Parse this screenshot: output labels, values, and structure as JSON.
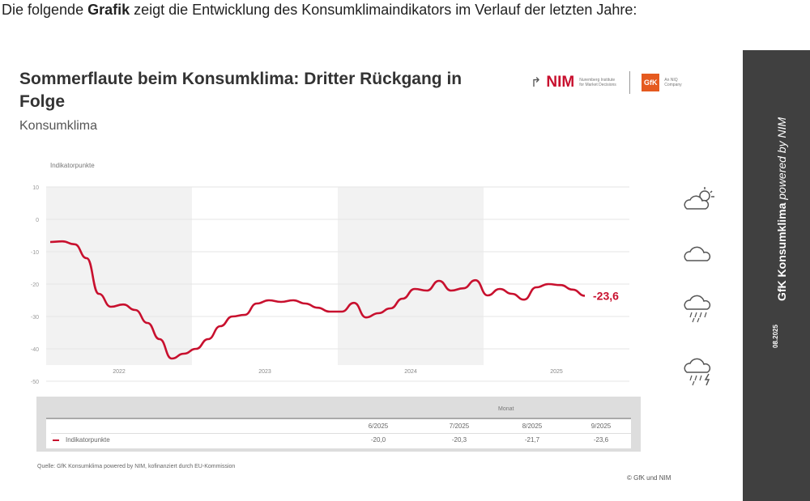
{
  "intro": {
    "pre": "Die folgende ",
    "bold": "Grafik",
    "post": " zeigt die Entwicklung des Konsumklimaindikators im Verlauf der letzten Jahre:"
  },
  "logos": {
    "nim": "NIM",
    "nim_sub": "Nuremberg Institute for Market Decisions",
    "gfk": "GfK",
    "gfk_sub": "An NIQ Company"
  },
  "side": {
    "title_bold": "GfK Konsumklima",
    "title_rest": " powered by NIM",
    "date": "08.2025"
  },
  "weather_icons": [
    "sun-cloud-icon",
    "cloud-icon",
    "rain-cloud-icon",
    "thunderstorm-icon"
  ],
  "table": {
    "header": "Monat",
    "columns": [
      "6/2025",
      "7/2025",
      "8/2025",
      "9/2025"
    ],
    "row_label": "Indikatorpunkte",
    "values": [
      "-20,0",
      "-20,3",
      "-21,7",
      "-23,6"
    ]
  },
  "source": "Quelle: GfK Konsumklima powered by NIM, kofinanziert durch EU-Kommission",
  "copyright": "© GfK und NIM",
  "chart_data": {
    "type": "line",
    "title": "Sommerflaute beim Konsumklima: Dritter Rückgang in Folge",
    "subtitle": "Konsumklima",
    "ylabel": "Indikatorpunkte",
    "ylim": [
      -50,
      10
    ],
    "yticks": [
      "10",
      "0",
      "-10",
      "-20",
      "-30",
      "-40",
      "-50"
    ],
    "ytick_values": [
      10,
      0,
      -10,
      -20,
      -30,
      -40,
      -50
    ],
    "years": [
      "2022",
      "2023",
      "2024",
      "2025"
    ],
    "color": "#c8102e",
    "last_label": "-23,6",
    "series": [
      {
        "name": "Indikatorpunkte",
        "start": "1/2022",
        "values": [
          -7,
          -6.8,
          -7.7,
          -12,
          -23,
          -27,
          -26.3,
          -28,
          -32,
          -37,
          -43,
          -41.5,
          -40,
          -37,
          -33,
          -30,
          -29.5,
          -26,
          -25,
          -25.5,
          -25,
          -26,
          -27.3,
          -28.5,
          -28.5,
          -25.8,
          -30.3,
          -29,
          -27.5,
          -24.5,
          -21.5,
          -22,
          -19,
          -22,
          -21.3,
          -18.8,
          -23.5,
          -21.5,
          -23,
          -24.8,
          -21,
          -20,
          -20.3,
          -21.7,
          -23.6
        ]
      }
    ]
  }
}
